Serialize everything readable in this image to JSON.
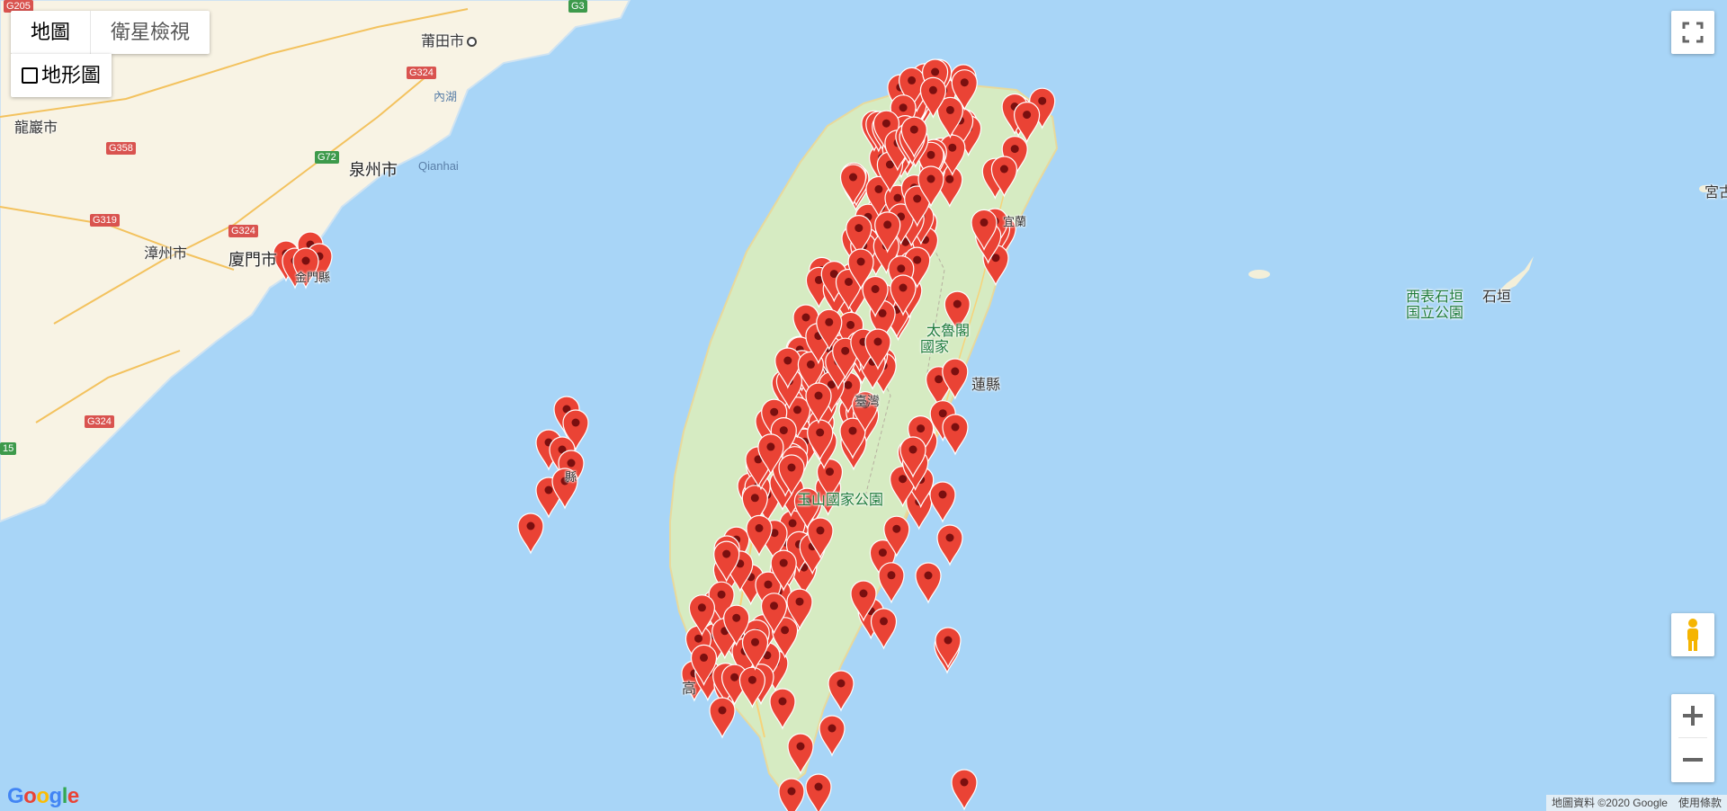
{
  "map_type_control": {
    "map_label": "地圖",
    "satellite_label": "衛星檢視",
    "terrain_label": "地形圖"
  },
  "place_labels": [
    {
      "id": "putian",
      "text": "莆田市"
    },
    {
      "id": "longyan",
      "text": "龍巖市"
    },
    {
      "id": "quanzhou",
      "text": "泉州市"
    },
    {
      "id": "zhangzhou",
      "text": "漳州市"
    },
    {
      "id": "xiamen",
      "text": "廈門市"
    },
    {
      "id": "qianhai",
      "text": "Qianhai"
    },
    {
      "id": "neihu",
      "text": "內湖"
    },
    {
      "id": "taiwan",
      "text": "臺灣"
    },
    {
      "id": "yushan",
      "text": "玉山國家公園"
    },
    {
      "id": "taroko1",
      "text": "太魯閣"
    },
    {
      "id": "taroko2",
      "text": "國家"
    },
    {
      "id": "hualien",
      "text": "蓮縣"
    },
    {
      "id": "kaohsiung",
      "text": "高"
    },
    {
      "id": "yilan",
      "text": "宜蘭"
    },
    {
      "id": "penghu",
      "text": "縣"
    },
    {
      "id": "kinmen",
      "text": "金門縣"
    },
    {
      "id": "xibiao1",
      "text": "西表石垣"
    },
    {
      "id": "xibiao2",
      "text": "国立公園"
    },
    {
      "id": "ishigaki",
      "text": "石垣"
    },
    {
      "id": "miyako",
      "text": "宮古"
    }
  ],
  "road_shields": [
    "G205",
    "G3",
    "G324",
    "G358",
    "G72",
    "G319",
    "G324",
    "G324",
    "15"
  ],
  "colors": {
    "water": "#a8d5f7",
    "land_mainland": "#f8f3e4",
    "land_taiwan": "#d6ebc2",
    "marker": "#ea4335",
    "marker_dot": "#7a0f0f"
  },
  "icons": {
    "fullscreen": "fullscreen-icon",
    "pegman": "pegman-icon",
    "zoom_in": "plus-icon",
    "zoom_out": "minus-icon"
  },
  "logo": "Google",
  "attribution": {
    "data": "地圖資料 ©2020 Google",
    "terms": "使用條款"
  }
}
